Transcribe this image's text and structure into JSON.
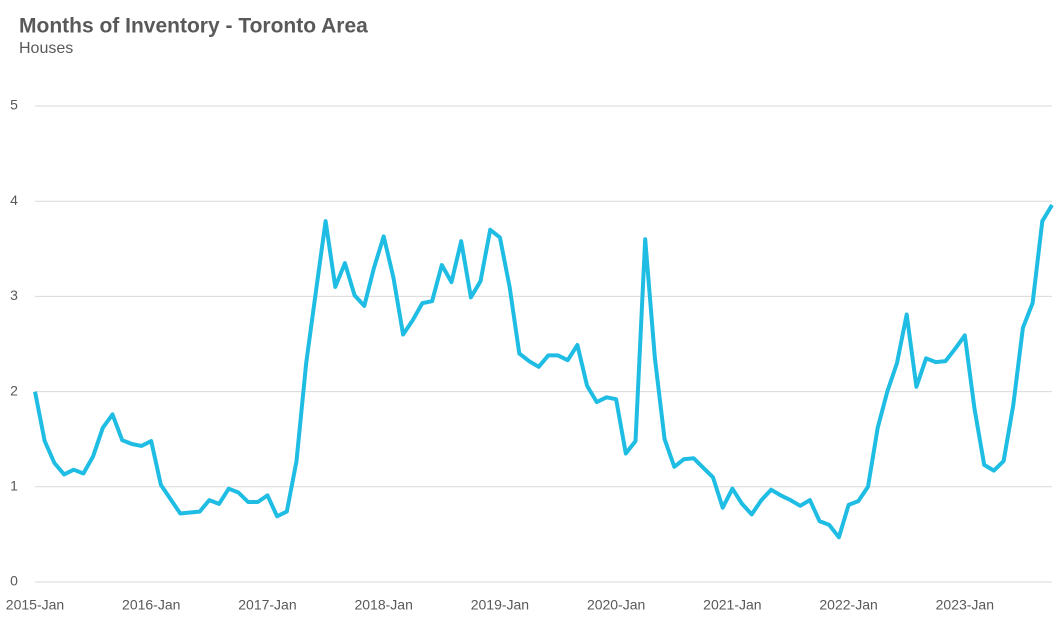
{
  "chart_data": {
    "type": "line",
    "title": "Months of Inventory - Toronto Area",
    "subtitle": "Houses",
    "categories": [
      "2015-Jan",
      null,
      null,
      null,
      null,
      null,
      null,
      null,
      null,
      null,
      null,
      null,
      "2016-Jan",
      null,
      null,
      null,
      null,
      null,
      null,
      null,
      null,
      null,
      null,
      null,
      "2017-Jan",
      null,
      null,
      null,
      null,
      null,
      null,
      null,
      null,
      null,
      null,
      null,
      "2018-Jan",
      null,
      null,
      null,
      null,
      null,
      null,
      null,
      null,
      null,
      null,
      null,
      "2019-Jan",
      null,
      null,
      null,
      null,
      null,
      null,
      null,
      null,
      null,
      null,
      null,
      "2020-Jan",
      null,
      null,
      null,
      null,
      null,
      null,
      null,
      null,
      null,
      null,
      null,
      "2021-Jan",
      null,
      null,
      null,
      null,
      null,
      null,
      null,
      null,
      null,
      null,
      null,
      "2022-Jan",
      null,
      null,
      null,
      null,
      null,
      null,
      null,
      null,
      null,
      null,
      null,
      "2023-Jan",
      null,
      null,
      null,
      null,
      null,
      null,
      null,
      null,
      null
    ],
    "values": [
      2.0,
      1.48,
      1.25,
      1.13,
      1.18,
      1.14,
      1.32,
      1.62,
      1.76,
      1.49,
      1.45,
      1.43,
      1.48,
      1.02,
      0.87,
      0.72,
      0.73,
      0.74,
      0.86,
      0.82,
      0.98,
      0.94,
      0.84,
      0.84,
      0.91,
      0.69,
      0.74,
      1.27,
      2.3,
      3.05,
      3.79,
      3.1,
      3.35,
      3.01,
      2.9,
      3.3,
      3.63,
      3.2,
      2.6,
      2.75,
      2.93,
      2.95,
      3.33,
      3.15,
      3.58,
      2.99,
      3.16,
      3.7,
      3.62,
      3.1,
      2.4,
      2.32,
      2.26,
      2.38,
      2.38,
      2.33,
      2.49,
      2.06,
      1.89,
      1.94,
      1.92,
      1.35,
      1.48,
      3.6,
      2.35,
      1.5,
      1.21,
      1.29,
      1.3,
      1.2,
      1.1,
      0.78,
      0.98,
      0.82,
      0.71,
      0.86,
      0.97,
      0.91,
      0.86,
      0.8,
      0.86,
      0.64,
      0.6,
      0.47,
      0.81,
      0.85,
      1.0,
      1.62,
      2.0,
      2.3,
      2.81,
      2.05,
      2.35,
      2.31,
      2.32,
      2.45,
      2.59,
      1.82,
      1.23,
      1.17,
      1.27,
      1.86,
      2.67,
      2.93,
      3.79,
      3.96
    ],
    "color": "#1fbde3",
    "ylim": [
      0,
      5
    ],
    "yticks": [
      0,
      1,
      2,
      3,
      4,
      5
    ],
    "grid": true
  }
}
